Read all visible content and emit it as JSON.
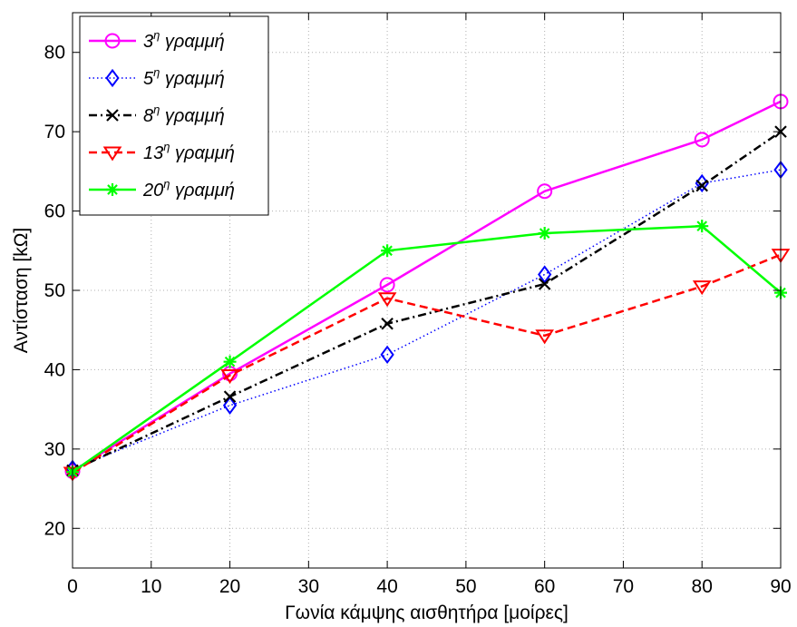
{
  "chart_data": {
    "type": "line",
    "title": "",
    "xlabel": "Γωνία κάμψης αισθητήρα [μοίρες]",
    "ylabel": "Αντίσταση [kΩ]",
    "xlim": [
      0,
      90
    ],
    "ylim": [
      15,
      85
    ],
    "xticks": [
      0,
      10,
      20,
      30,
      40,
      50,
      60,
      70,
      80,
      90
    ],
    "yticks": [
      20,
      30,
      40,
      50,
      60,
      70,
      80
    ],
    "grid": true,
    "legend_position": "top-left",
    "x": [
      0,
      20,
      40,
      60,
      80,
      90
    ],
    "series": [
      {
        "name_main": "3",
        "name_sup": "η",
        "name_rest": " γραμμή",
        "color": "#ff00ff",
        "line": "solid",
        "marker": "circle",
        "values": [
          27.2,
          39.5,
          50.7,
          62.5,
          69.0,
          73.8
        ]
      },
      {
        "name_main": "5",
        "name_sup": "η",
        "name_rest": " γραμμή",
        "color": "#0000ff",
        "line": "dotted",
        "marker": "diamond",
        "values": [
          27.5,
          35.5,
          41.9,
          52.0,
          63.5,
          65.2
        ]
      },
      {
        "name_main": "8",
        "name_sup": "η",
        "name_rest": " γραμμή",
        "color": "#000000",
        "line": "dashdot",
        "marker": "x",
        "values": [
          27.3,
          36.6,
          45.8,
          50.8,
          63.2,
          70.0
        ]
      },
      {
        "name_main": "13",
        "name_sup": "η",
        "name_rest": " γραμμή",
        "color": "#ff0000",
        "line": "dashed",
        "marker": "triangle-down",
        "values": [
          27.0,
          39.3,
          49.0,
          44.3,
          50.5,
          54.5
        ]
      },
      {
        "name_main": "20",
        "name_sup": "η",
        "name_rest": " γραμμή",
        "color": "#00ff00",
        "line": "solid",
        "marker": "asterisk",
        "values": [
          27.1,
          41.0,
          55.0,
          57.2,
          58.1,
          49.7
        ]
      }
    ]
  }
}
